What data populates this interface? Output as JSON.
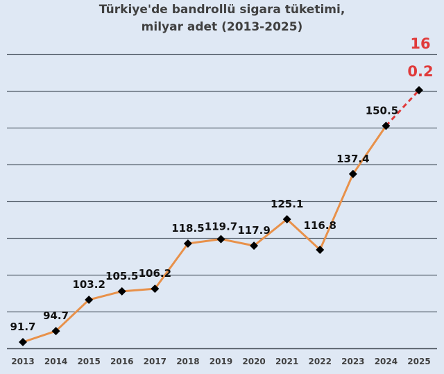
{
  "chart_data": {
    "type": "line",
    "title": "Türkiye'de bandrollü sigara tüketimi, milyar adet (2013-2025)",
    "title_lines": [
      "Türkiye'de bandrollü sigara tüketimi,",
      "milyar adet (2013-2025)"
    ],
    "xlabel": "",
    "ylabel": "",
    "categories": [
      "2013",
      "2014",
      "2015",
      "2016",
      "2017",
      "2018",
      "2019",
      "2020",
      "2021",
      "2022",
      "2023",
      "2024",
      "2025"
    ],
    "series": [
      {
        "name": "Bandrollü sigara tüketimi (milyar adet)",
        "values": [
          91.7,
          94.7,
          103.2,
          105.5,
          106.2,
          118.5,
          119.7,
          117.9,
          125.1,
          116.8,
          137.4,
          150.5,
          160.2
        ],
        "labels": [
          "91.7",
          "94.7",
          "103.2",
          "105.5",
          "106.2",
          "118.5",
          "119.7",
          "117.9",
          "125.1",
          "116.8",
          "137.4",
          "150.5",
          "160.2"
        ],
        "color": "#e8914a",
        "projected_segment": {
          "from": "2024",
          "to": "2025",
          "color": "#e03a3a",
          "style": "dashed"
        },
        "highlight_label": {
          "category": "2025",
          "text_line1": "16",
          "text_line2": "0.2",
          "color": "#e03a3a"
        }
      }
    ],
    "ylim": [
      90,
      170
    ],
    "y_gridlines": [
      100,
      110,
      120,
      130,
      140,
      150,
      160,
      170
    ],
    "y_tick_labels_visible": false,
    "grid": true,
    "legend": "none",
    "marker": "diamond",
    "marker_color": "#000000",
    "background": "#dfe8f4"
  }
}
